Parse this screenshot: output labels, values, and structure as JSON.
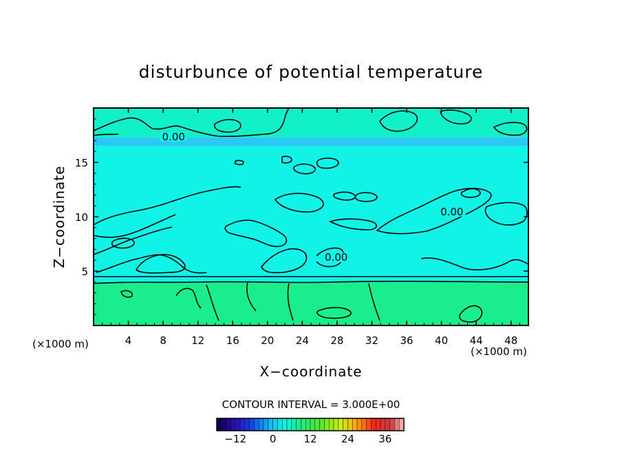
{
  "chart_data": {
    "type": "heatmap",
    "title": "disturbunce of potential temperature",
    "xlabel": "X−coordinate",
    "ylabel": "Z−coordinate",
    "x_unit_left": "(×1000 m)",
    "x_unit_right": "(×1000 m)",
    "xlim": [
      0,
      50
    ],
    "ylim": [
      0,
      20
    ],
    "x_ticks": [
      4,
      8,
      12,
      16,
      20,
      24,
      28,
      32,
      36,
      40,
      44,
      48
    ],
    "y_ticks": [
      5,
      10,
      15
    ],
    "contour_interval_text": "CONTOUR INTERVAL = 3.000E+00",
    "contour_labels": [
      {
        "text": "0.00",
        "x": 9.2,
        "z": 17.1
      },
      {
        "text": "0.00",
        "x": 41.2,
        "z": 10.2
      },
      {
        "text": "0.00",
        "x": 27.9,
        "z": 6.0
      }
    ],
    "colorbar": {
      "min": -18,
      "max": 42,
      "ticks": [
        -12,
        0,
        12,
        24,
        36
      ],
      "tick_labels": [
        "−12",
        "0",
        "12",
        "24",
        "36"
      ]
    },
    "field_regions": [
      {
        "z_from": 0,
        "z_to": 4,
        "value": 4,
        "color": "#1aee8c"
      },
      {
        "z_from": 4,
        "z_to": 16.5,
        "value": 1,
        "color": "#10f3e6"
      },
      {
        "z_from": 16.5,
        "z_to": 17.3,
        "value": 0,
        "color": "#2cc8f5"
      },
      {
        "z_from": 17.3,
        "z_to": 20,
        "value": 2,
        "color": "#12f0c8"
      }
    ]
  }
}
